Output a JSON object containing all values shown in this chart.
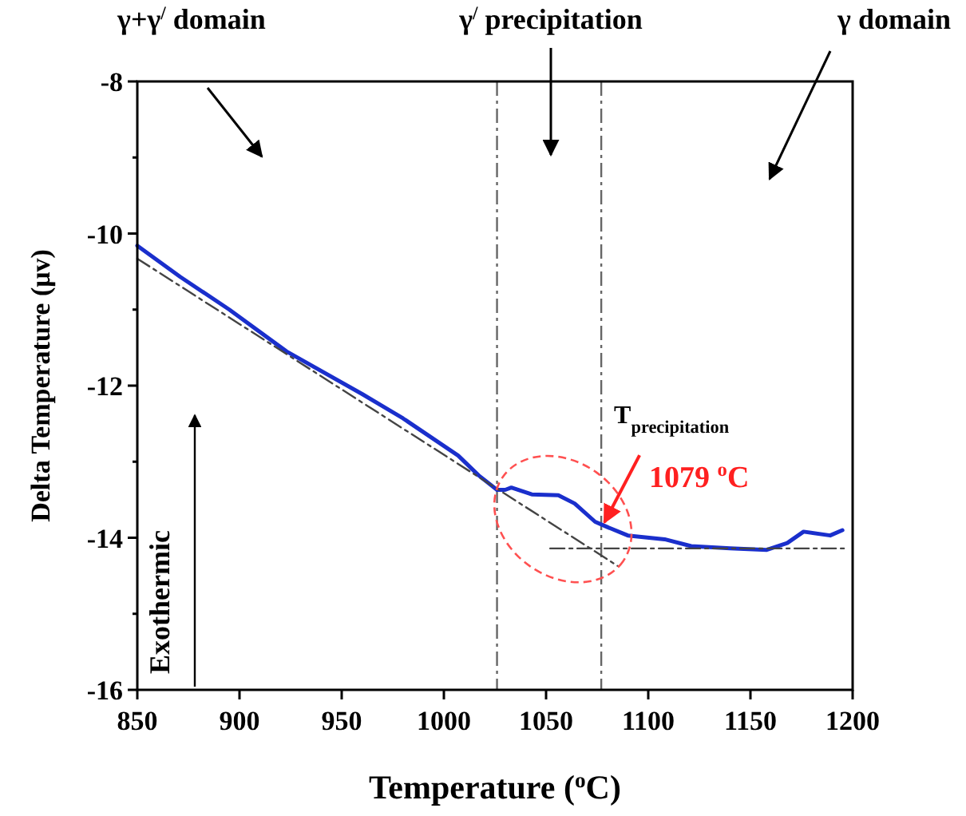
{
  "chart_data": {
    "type": "line",
    "xlabel": "Temperature ($^{o}$C)",
    "ylabel": "Delta Temperature (μv)",
    "xlim": [
      850,
      1200
    ],
    "xticks": [
      850,
      900,
      950,
      1000,
      1050,
      1100,
      1150,
      1200
    ],
    "ylim": [
      -16,
      -8
    ],
    "yticks": [
      -16,
      {
        "value": -15,
        "label": null
      },
      -14,
      {
        "value": -13,
        "label": null
      },
      -12,
      {
        "value": -11,
        "label": null
      },
      -10,
      {
        "value": -9,
        "label": null
      },
      -8
    ],
    "grid": false,
    "series": [
      {
        "color": "#1a2fcc",
        "line_style": "solid",
        "x": [
          850,
          871,
          895,
          923,
          960,
          980,
          1007,
          1017,
          1026,
          1030,
          1033,
          1043,
          1056,
          1064,
          1074,
          1080,
          1090,
          1108,
          1121,
          1140,
          1158,
          1168,
          1176,
          1189,
          1195
        ],
        "values": [
          -10.16,
          -10.57,
          -11.0,
          -11.55,
          -12.11,
          -12.43,
          -12.92,
          -13.18,
          -13.37,
          -13.37,
          -13.34,
          -13.43,
          -13.44,
          -13.55,
          -13.79,
          -13.86,
          -13.97,
          -14.02,
          -14.11,
          -14.14,
          -14.16,
          -14.07,
          -13.92,
          -13.97,
          -13.9
        ]
      },
      {
        "type": "line",
        "color": "#444444",
        "line_style": "dashed",
        "x": [
          850,
          1085
        ],
        "values": [
          -10.33,
          -14.37
        ]
      },
      {
        "type": "line",
        "color": "#444444",
        "line_style": "dashed",
        "x": [
          1052,
          1197
        ],
        "values": [
          -14.14,
          -14.14
        ]
      }
    ],
    "ref_lines": [
      {
        "axis": "x",
        "value": 1026,
        "color": "#666666",
        "line_style": "dashed"
      },
      {
        "axis": "x",
        "value": 1077,
        "color": "#666666",
        "line_style": "dashed"
      }
    ],
    "annotations": [
      "γ+γ$^{/}$ domain",
      "γ$^{/}$ precipitation",
      "γ domain",
      "Exothermic",
      "T$_{precipitation}$",
      {
        "text": "1079 $^{o}$C",
        "x": 1077,
        "y": -13.86
      }
    ]
  }
}
